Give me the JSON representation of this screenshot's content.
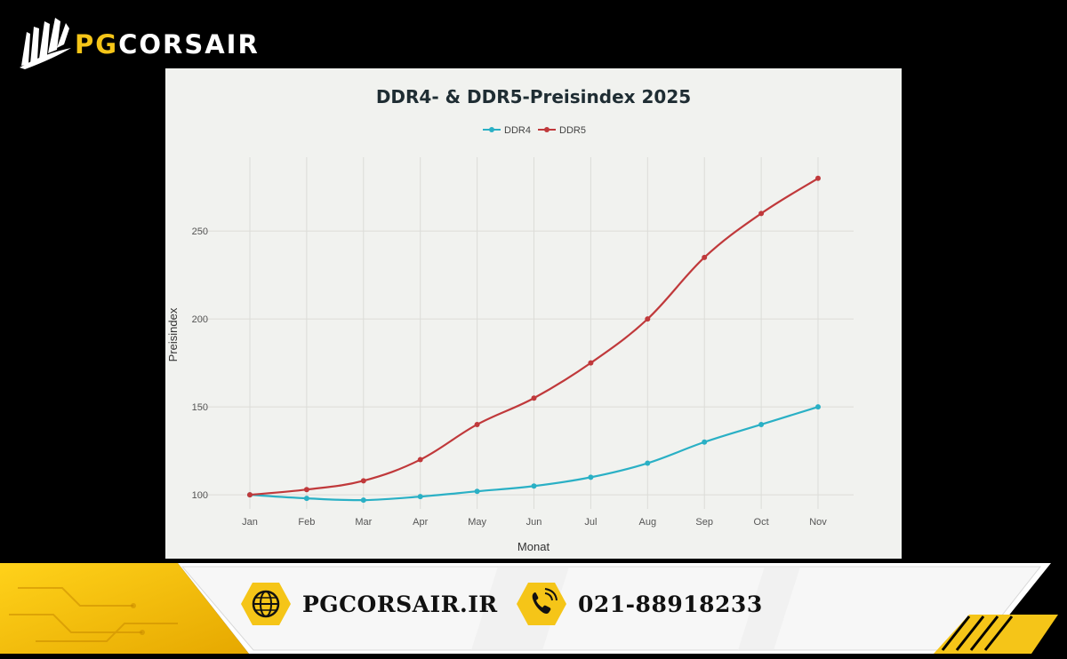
{
  "brand": {
    "logo_prefix": "PG",
    "logo_suffix": "CORSAIR",
    "colors": {
      "accent": "#f5c518",
      "background": "#000000"
    }
  },
  "chart_data": {
    "type": "line",
    "title": "DDR4- & DDR5-Preisindex 2025",
    "xlabel": "Monat",
    "ylabel": "Preisindex",
    "categories": [
      "Jan",
      "Feb",
      "Mar",
      "Apr",
      "May",
      "Jun",
      "Jul",
      "Aug",
      "Sep",
      "Oct",
      "Nov"
    ],
    "y_ticks": [
      100,
      150,
      200,
      250
    ],
    "ylim": [
      92,
      292
    ],
    "grid": true,
    "legend_position": "top-center",
    "series": [
      {
        "name": "DDR4",
        "color": "#2ab0c5",
        "values": [
          100,
          98,
          97,
          99,
          102,
          105,
          110,
          118,
          130,
          140,
          150
        ]
      },
      {
        "name": "DDR5",
        "color": "#c0393b",
        "values": [
          100,
          103,
          108,
          120,
          140,
          155,
          175,
          200,
          235,
          260,
          280
        ]
      }
    ]
  },
  "footer": {
    "website": "PGCORSAIR.IR",
    "phone": "021-88918233",
    "icons": [
      "globe-icon",
      "phone-icon"
    ]
  }
}
